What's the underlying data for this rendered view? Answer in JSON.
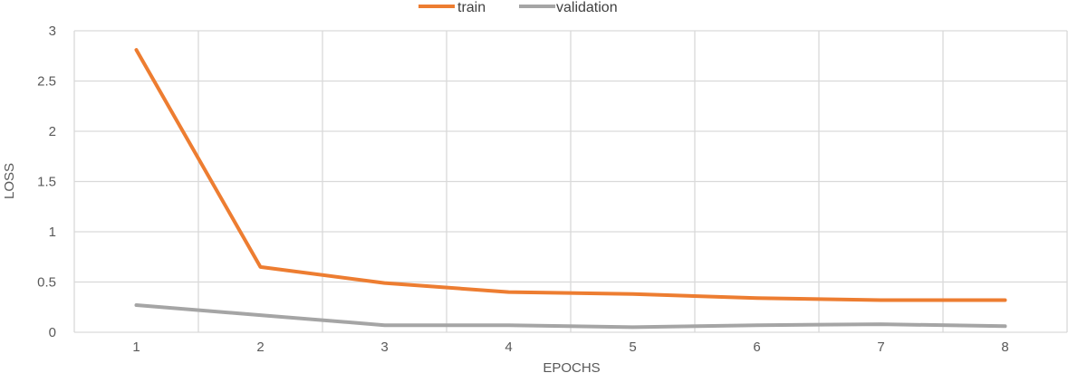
{
  "chart_data": {
    "type": "line",
    "title": "",
    "xlabel": "EPOCHS",
    "ylabel": "LOSS",
    "x": [
      1,
      2,
      3,
      4,
      5,
      6,
      7,
      8
    ],
    "x_tick_labels": [
      "1",
      "2",
      "3",
      "4",
      "5",
      "6",
      "7",
      "8"
    ],
    "y_tick_labels": [
      "0",
      "0.5",
      "1",
      "1.5",
      "2",
      "2.5",
      "3"
    ],
    "ylim": [
      0,
      3
    ],
    "grid": true,
    "legend_position": "top-center",
    "series": [
      {
        "name": "train",
        "color": "#ed7d31",
        "values": [
          2.81,
          0.65,
          0.49,
          0.4,
          0.38,
          0.34,
          0.32,
          0.32
        ]
      },
      {
        "name": "validation",
        "color": "#a5a5a5",
        "values": [
          0.27,
          0.17,
          0.07,
          0.07,
          0.05,
          0.07,
          0.08,
          0.06
        ]
      }
    ]
  }
}
